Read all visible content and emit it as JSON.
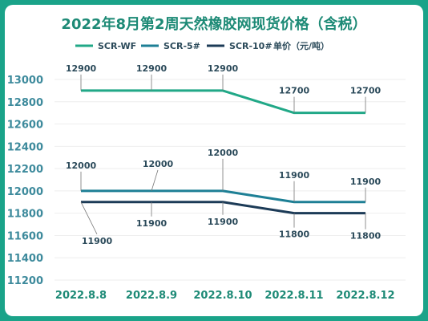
{
  "chart_data": {
    "type": "line",
    "title": "2022年8月第2周天然橡胶网现货价格（含税）",
    "unit": "单价（元/吨）",
    "categories": [
      "2022.8.8",
      "2022.8.9",
      "2022.8.10",
      "2022.8.11",
      "2022.8.12"
    ],
    "ylim": [
      11200,
      13000
    ],
    "yticks": [
      11200,
      11400,
      11600,
      11800,
      12000,
      12200,
      12400,
      12600,
      12800,
      13000
    ],
    "grid": true,
    "legend": "top",
    "series": [
      {
        "name": "SCR-WF",
        "color": "#21a887",
        "values": [
          12900,
          12900,
          12900,
          12700,
          12700
        ]
      },
      {
        "name": "SCR-5#",
        "color": "#1d7f95",
        "values": [
          12000,
          12000,
          12000,
          11900,
          11900
        ]
      },
      {
        "name": "SCR-10#",
        "color": "#1c3b57",
        "values": [
          11900,
          11900,
          11900,
          11800,
          11800
        ]
      }
    ]
  }
}
